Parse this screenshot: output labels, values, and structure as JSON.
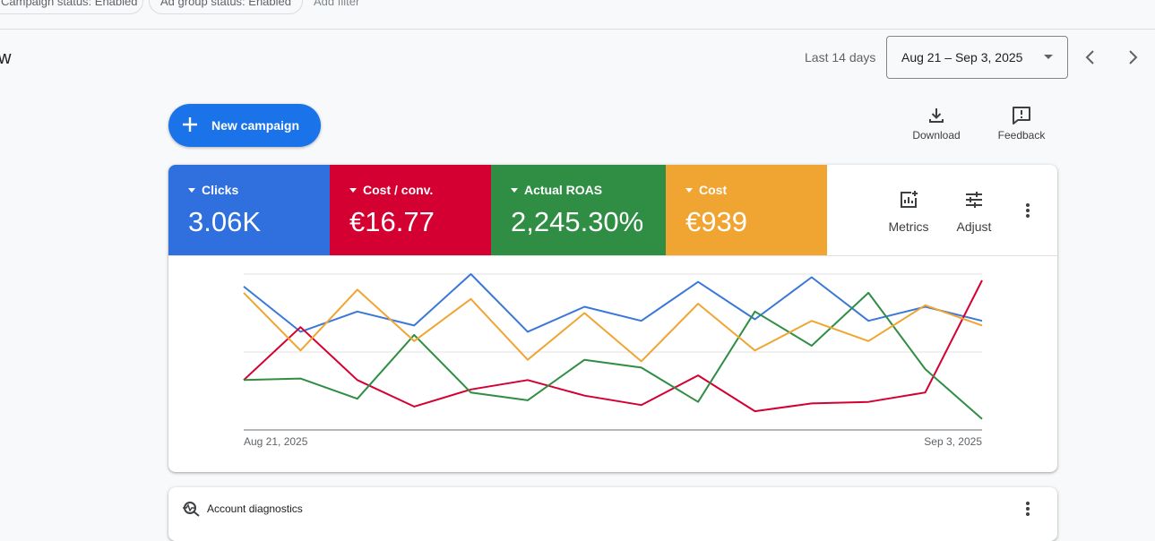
{
  "filters": {
    "campaign_status": "Campaign status: Enabled",
    "ad_group_status": "Ad group status: Enabled",
    "add_filter": "Add filter"
  },
  "page": {
    "title": "w"
  },
  "date_range": {
    "label": "Last 14 days",
    "value": "Aug 21 – Sep 3, 2025"
  },
  "toolbar": {
    "new_campaign": "New campaign",
    "download": "Download",
    "feedback": "Feedback"
  },
  "metrics": [
    {
      "name": "Clicks",
      "value": "3.06K",
      "color": "#2f6fde"
    },
    {
      "name": "Cost / conv.",
      "value": "€16.77",
      "color": "#d50032"
    },
    {
      "name": "Actual ROAS",
      "value": "2,245.30%",
      "color": "#2f8e44"
    },
    {
      "name": "Cost",
      "value": "€939",
      "color": "#f0a533"
    }
  ],
  "chart_controls": {
    "metrics": "Metrics",
    "adjust": "Adjust"
  },
  "chart_data": {
    "type": "line",
    "x_start_label": "Aug 21, 2025",
    "x_end_label": "Sep 3, 2025",
    "x": [
      "Aug 21",
      "Aug 22",
      "Aug 23",
      "Aug 24",
      "Aug 25",
      "Aug 26",
      "Aug 27",
      "Aug 28",
      "Aug 29",
      "Aug 30",
      "Aug 31",
      "Sep 1",
      "Sep 2",
      "Sep 3"
    ],
    "y_unit": "relative (0 = baseline, 100 = top gridline)",
    "ylim": [
      0,
      100
    ],
    "grid": "horizontal",
    "series": [
      {
        "color": "#3a78d8",
        "values": [
          92,
          63,
          76,
          67,
          100,
          63,
          79,
          70,
          95,
          71,
          98,
          70,
          79,
          70
        ]
      },
      {
        "color": "#d50032",
        "values": [
          32,
          66,
          32,
          15,
          26,
          32,
          22,
          16,
          35,
          12,
          17,
          18,
          24,
          96
        ]
      },
      {
        "color": "#2f8e44",
        "values": [
          32,
          33,
          20,
          61,
          24,
          19,
          45,
          40,
          18,
          76,
          54,
          88,
          39,
          7
        ]
      },
      {
        "color": "#f0a533",
        "values": [
          88,
          51,
          90,
          57,
          84,
          45,
          75,
          44,
          81,
          51,
          70,
          57,
          80,
          67
        ]
      }
    ]
  },
  "diagnostics": {
    "label": "Account diagnostics"
  }
}
